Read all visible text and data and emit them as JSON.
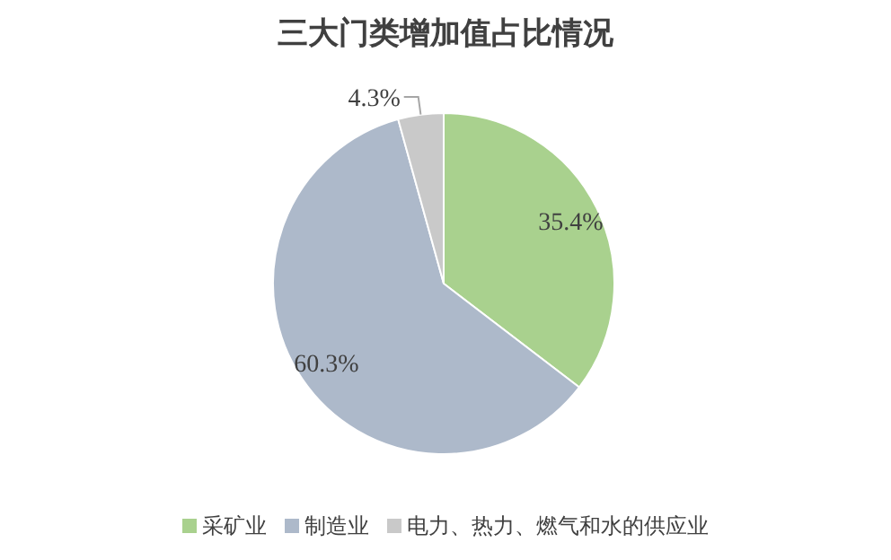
{
  "chart_data": {
    "type": "pie",
    "title": "三大门类增加值占比情况",
    "categories": [
      "采矿业",
      "制造业",
      "电力、热力、燃气和水的供应业"
    ],
    "values": [
      35.4,
      60.3,
      4.3
    ],
    "colors": [
      "#a9d18e",
      "#adb9ca",
      "#c9c9c9"
    ],
    "value_labels": [
      "35.4%",
      "60.3%",
      "4.3%"
    ],
    "legend": "bottom"
  }
}
